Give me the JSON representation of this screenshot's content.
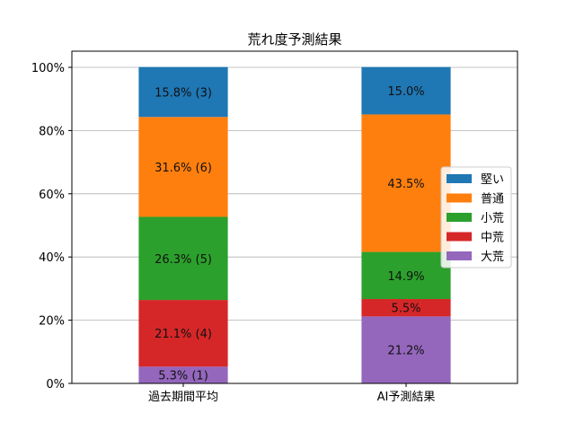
{
  "chart_data": {
    "type": "bar",
    "title": "荒れ度予測結果",
    "xlabel": "",
    "ylabel": "",
    "categories": [
      "過去期間平均",
      "AI予測結果"
    ],
    "ylim": [
      0,
      100
    ],
    "yticks": [
      "0%",
      "20%",
      "40%",
      "60%",
      "80%",
      "100%"
    ],
    "grid": true,
    "legend_placement": "right",
    "series": [
      {
        "name": "大荒",
        "color": "#9467bd",
        "values": [
          5.3,
          21.2
        ],
        "labels": [
          "5.3% (1)",
          "21.2%"
        ]
      },
      {
        "name": "中荒",
        "color": "#d62728",
        "values": [
          21.1,
          5.5
        ],
        "labels": [
          "21.1% (4)",
          "5.5%"
        ]
      },
      {
        "name": "小荒",
        "color": "#2ca02c",
        "values": [
          26.3,
          14.9
        ],
        "labels": [
          "26.3% (5)",
          "14.9%"
        ]
      },
      {
        "name": "普通",
        "color": "#ff7f0e",
        "values": [
          31.6,
          43.5
        ],
        "labels": [
          "31.6% (6)",
          "43.5%"
        ]
      },
      {
        "name": "堅い",
        "color": "#1f77b4",
        "values": [
          15.8,
          15.0
        ],
        "labels": [
          "15.8% (3)",
          "15.0%"
        ]
      }
    ],
    "legend_order": [
      "堅い",
      "普通",
      "小荒",
      "中荒",
      "大荒"
    ]
  }
}
